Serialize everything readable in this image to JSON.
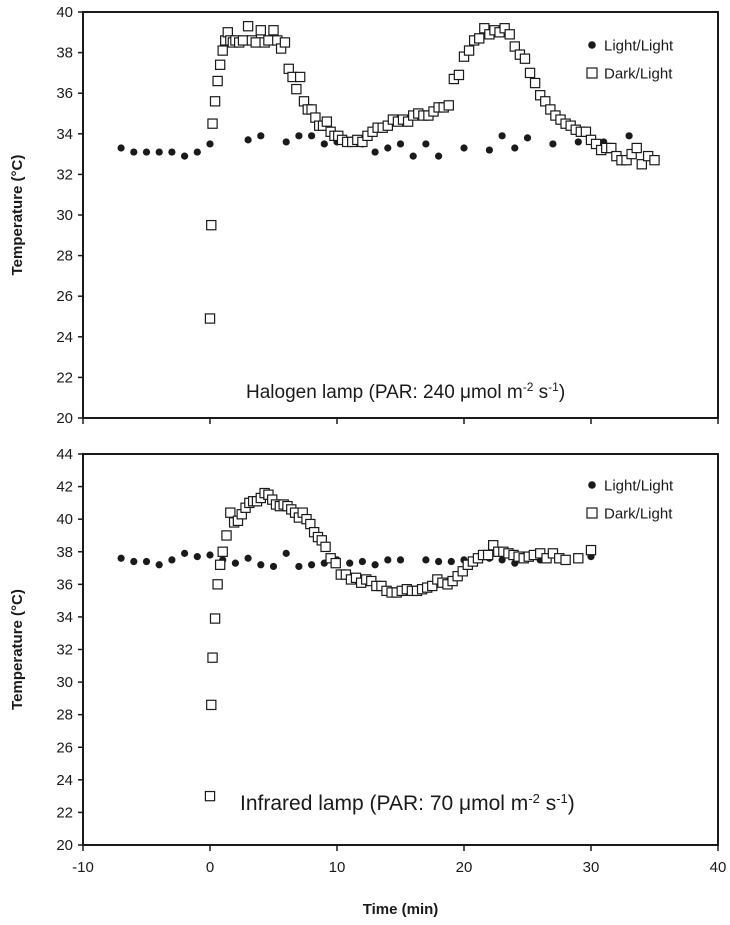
{
  "chart_data": [
    {
      "type": "scatter",
      "ylabel": "Temperature (°C)",
      "xlim": [
        -10,
        40
      ],
      "ylim": [
        20,
        40
      ],
      "y_ticks": [
        20,
        22,
        24,
        26,
        28,
        30,
        32,
        34,
        36,
        38,
        40
      ],
      "annotation": {
        "text": "Halogen lamp (PAR: 240  μmol m",
        "sup1": "-2",
        "mid": " s",
        "sup2": "-1",
        "end": ")"
      },
      "legend_position": "top-right",
      "series": [
        {
          "name": "Light/Light",
          "marker": "filled-circle",
          "color": "#1a1a1a",
          "points": [
            [
              -7,
              33.3
            ],
            [
              -6,
              33.1
            ],
            [
              -5,
              33.1
            ],
            [
              -4,
              33.1
            ],
            [
              -3,
              33.1
            ],
            [
              -2,
              32.9
            ],
            [
              -1,
              33.1
            ],
            [
              0,
              33.5
            ],
            [
              3,
              33.7
            ],
            [
              4,
              33.9
            ],
            [
              6,
              33.6
            ],
            [
              7,
              33.9
            ],
            [
              8,
              33.9
            ],
            [
              9,
              33.5
            ],
            [
              10,
              33.6
            ],
            [
              11,
              33.6
            ],
            [
              12,
              33.5
            ],
            [
              13,
              33.1
            ],
            [
              14,
              33.3
            ],
            [
              15,
              33.5
            ],
            [
              16,
              32.9
            ],
            [
              17,
              33.5
            ],
            [
              18,
              32.9
            ],
            [
              20,
              33.3
            ],
            [
              22,
              33.2
            ],
            [
              23,
              33.9
            ],
            [
              24,
              33.3
            ],
            [
              25,
              33.8
            ],
            [
              27,
              33.5
            ],
            [
              29,
              33.6
            ],
            [
              31,
              33.6
            ],
            [
              33,
              33.9
            ]
          ]
        },
        {
          "name": "Dark/Light",
          "marker": "open-square",
          "color": "#1a1a1a",
          "points": [
            [
              0,
              24.9
            ],
            [
              0.1,
              29.5
            ],
            [
              0.2,
              34.5
            ],
            [
              0.4,
              35.6
            ],
            [
              0.6,
              36.6
            ],
            [
              0.8,
              37.4
            ],
            [
              1,
              38.1
            ],
            [
              1.2,
              38.6
            ],
            [
              1.4,
              39
            ],
            [
              1.6,
              38.6
            ],
            [
              1.8,
              38.5
            ],
            [
              2,
              38.6
            ],
            [
              2.3,
              38.5
            ],
            [
              2.6,
              38.6
            ],
            [
              3,
              39.3
            ],
            [
              3.3,
              38.6
            ],
            [
              3.6,
              38.5
            ],
            [
              4,
              39.1
            ],
            [
              4.3,
              38.5
            ],
            [
              4.6,
              38.6
            ],
            [
              5,
              39.1
            ],
            [
              5.3,
              38.6
            ],
            [
              5.6,
              38.2
            ],
            [
              5.9,
              38.5
            ],
            [
              6.2,
              37.2
            ],
            [
              6.5,
              36.8
            ],
            [
              6.8,
              36.2
            ],
            [
              7.1,
              36.8
            ],
            [
              7.4,
              35.6
            ],
            [
              7.7,
              35.2
            ],
            [
              8,
              35.2
            ],
            [
              8.3,
              34.8
            ],
            [
              8.6,
              34.4
            ],
            [
              8.9,
              34.4
            ],
            [
              9.2,
              34.6
            ],
            [
              9.5,
              34.1
            ],
            [
              9.8,
              33.9
            ],
            [
              10.1,
              33.9
            ],
            [
              10.4,
              33.7
            ],
            [
              10.8,
              33.6
            ],
            [
              11.2,
              33.6
            ],
            [
              11.6,
              33.7
            ],
            [
              12,
              33.6
            ],
            [
              12.4,
              33.9
            ],
            [
              12.8,
              34.1
            ],
            [
              13.2,
              34.3
            ],
            [
              13.6,
              34.3
            ],
            [
              14,
              34.4
            ],
            [
              14.4,
              34.7
            ],
            [
              14.8,
              34.6
            ],
            [
              15.2,
              34.7
            ],
            [
              15.6,
              34.6
            ],
            [
              16,
              34.9
            ],
            [
              16.4,
              35
            ],
            [
              16.8,
              34.9
            ],
            [
              17.2,
              34.9
            ],
            [
              17.6,
              35.1
            ],
            [
              18,
              35.3
            ],
            [
              18.4,
              35.3
            ],
            [
              18.8,
              35.4
            ],
            [
              19.2,
              36.7
            ],
            [
              19.6,
              36.9
            ],
            [
              20,
              37.8
            ],
            [
              20.4,
              38.1
            ],
            [
              20.8,
              38.6
            ],
            [
              21.2,
              38.7
            ],
            [
              21.6,
              39.2
            ],
            [
              22,
              38.9
            ],
            [
              22.4,
              39.1
            ],
            [
              22.8,
              39
            ],
            [
              23.2,
              39.2
            ],
            [
              23.6,
              38.9
            ],
            [
              24,
              38.3
            ],
            [
              24.4,
              37.9
            ],
            [
              24.8,
              37.7
            ],
            [
              25.2,
              37
            ],
            [
              25.6,
              36.5
            ],
            [
              26,
              35.9
            ],
            [
              26.4,
              35.6
            ],
            [
              26.8,
              35.2
            ],
            [
              27.2,
              34.9
            ],
            [
              27.6,
              34.7
            ],
            [
              28,
              34.5
            ],
            [
              28.4,
              34.4
            ],
            [
              28.8,
              34.2
            ],
            [
              29.2,
              34.1
            ],
            [
              29.6,
              34.1
            ],
            [
              30,
              33.7
            ],
            [
              30.4,
              33.5
            ],
            [
              30.8,
              33.2
            ],
            [
              31.2,
              33.3
            ],
            [
              31.6,
              33.3
            ],
            [
              32,
              32.9
            ],
            [
              32.4,
              32.7
            ],
            [
              32.8,
              32.7
            ],
            [
              33.2,
              33
            ],
            [
              33.6,
              33.3
            ],
            [
              34,
              32.5
            ],
            [
              34.5,
              32.9
            ],
            [
              35,
              32.7
            ]
          ]
        }
      ]
    },
    {
      "type": "scatter",
      "xlabel": "Time (min)",
      "ylabel": "Temperature (°C)",
      "xlim": [
        -10,
        40
      ],
      "ylim": [
        20,
        44
      ],
      "x_ticks": [
        -10,
        0,
        10,
        20,
        30,
        40
      ],
      "y_ticks": [
        20,
        22,
        24,
        26,
        28,
        30,
        32,
        34,
        36,
        38,
        40,
        42,
        44
      ],
      "annotation": {
        "text": "Infrared lamp (PAR: 70 μmol m",
        "sup1": "-2",
        "mid": " s",
        "sup2": "-1",
        "end": ")"
      },
      "legend_position": "top-right",
      "series": [
        {
          "name": "Light/Light",
          "marker": "filled-circle",
          "color": "#1a1a1a",
          "points": [
            [
              -7,
              37.6
            ],
            [
              -6,
              37.4
            ],
            [
              -5,
              37.4
            ],
            [
              -4,
              37.2
            ],
            [
              -3,
              37.5
            ],
            [
              -2,
              37.9
            ],
            [
              -1,
              37.7
            ],
            [
              0,
              37.8
            ],
            [
              1,
              37.5
            ],
            [
              2,
              37.3
            ],
            [
              3,
              37.6
            ],
            [
              4,
              37.2
            ],
            [
              5,
              37.1
            ],
            [
              6,
              37.9
            ],
            [
              7,
              37.1
            ],
            [
              8,
              37.2
            ],
            [
              9,
              37.3
            ],
            [
              10,
              37.5
            ],
            [
              11,
              37.3
            ],
            [
              12,
              37.4
            ],
            [
              13,
              37.2
            ],
            [
              14,
              37.5
            ],
            [
              15,
              37.5
            ],
            [
              17,
              37.5
            ],
            [
              18,
              37.4
            ],
            [
              19,
              37.4
            ],
            [
              20,
              37.5
            ],
            [
              21,
              37.6
            ],
            [
              22,
              37.6
            ],
            [
              23,
              37.5
            ],
            [
              24,
              37.3
            ],
            [
              25,
              37.6
            ],
            [
              26,
              37.5
            ],
            [
              28,
              37.5
            ],
            [
              29,
              37.6
            ],
            [
              30,
              37.7
            ]
          ]
        },
        {
          "name": "Dark/Light",
          "marker": "open-square",
          "color": "#1a1a1a",
          "points": [
            [
              0,
              23
            ],
            [
              0.1,
              28.6
            ],
            [
              0.2,
              31.5
            ],
            [
              0.4,
              33.9
            ],
            [
              0.6,
              36
            ],
            [
              0.8,
              37.2
            ],
            [
              1,
              38
            ],
            [
              1.3,
              39
            ],
            [
              1.6,
              40.4
            ],
            [
              1.9,
              39.8
            ],
            [
              2.2,
              39.9
            ],
            [
              2.5,
              40.3
            ],
            [
              2.8,
              40.7
            ],
            [
              3.1,
              41
            ],
            [
              3.4,
              41.1
            ],
            [
              3.7,
              41.1
            ],
            [
              4,
              41.3
            ],
            [
              4.3,
              41.6
            ],
            [
              4.6,
              41.5
            ],
            [
              4.9,
              41.2
            ],
            [
              5.2,
              40.9
            ],
            [
              5.5,
              40.8
            ],
            [
              5.8,
              40.9
            ],
            [
              6.1,
              40.8
            ],
            [
              6.4,
              40.6
            ],
            [
              6.7,
              40.4
            ],
            [
              7,
              40.1
            ],
            [
              7.3,
              40.4
            ],
            [
              7.6,
              40
            ],
            [
              7.9,
              39.7
            ],
            [
              8.2,
              39.2
            ],
            [
              8.5,
              38.9
            ],
            [
              8.8,
              38.7
            ],
            [
              9.1,
              38.3
            ],
            [
              9.5,
              37.6
            ],
            [
              9.9,
              37.3
            ],
            [
              10.3,
              36.6
            ],
            [
              10.7,
              36.6
            ],
            [
              11.1,
              36.3
            ],
            [
              11.5,
              36.4
            ],
            [
              11.9,
              36.1
            ],
            [
              12.3,
              36.3
            ],
            [
              12.7,
              36.2
            ],
            [
              13.1,
              35.9
            ],
            [
              13.5,
              35.9
            ],
            [
              13.9,
              35.6
            ],
            [
              14.3,
              35.5
            ],
            [
              14.7,
              35.5
            ],
            [
              15.1,
              35.6
            ],
            [
              15.5,
              35.7
            ],
            [
              15.9,
              35.6
            ],
            [
              16.3,
              35.6
            ],
            [
              16.7,
              35.7
            ],
            [
              17.1,
              35.8
            ],
            [
              17.5,
              35.9
            ],
            [
              17.9,
              36.3
            ],
            [
              18.3,
              36.1
            ],
            [
              18.7,
              36
            ],
            [
              19.1,
              36.2
            ],
            [
              19.5,
              36.5
            ],
            [
              19.9,
              36.8
            ],
            [
              20.3,
              37.2
            ],
            [
              20.7,
              37.4
            ],
            [
              21.1,
              37.6
            ],
            [
              21.5,
              37.8
            ],
            [
              21.9,
              37.8
            ],
            [
              22.3,
              38.4
            ],
            [
              22.7,
              38
            ],
            [
              23.1,
              38
            ],
            [
              23.5,
              37.9
            ],
            [
              23.9,
              37.8
            ],
            [
              24.3,
              37.7
            ],
            [
              24.7,
              37.6
            ],
            [
              25.1,
              37.7
            ],
            [
              25.5,
              37.8
            ],
            [
              26,
              37.9
            ],
            [
              26.5,
              37.6
            ],
            [
              27,
              37.9
            ],
            [
              27.5,
              37.6
            ],
            [
              28,
              37.5
            ],
            [
              29,
              37.6
            ],
            [
              30,
              38.1
            ]
          ]
        }
      ]
    }
  ]
}
